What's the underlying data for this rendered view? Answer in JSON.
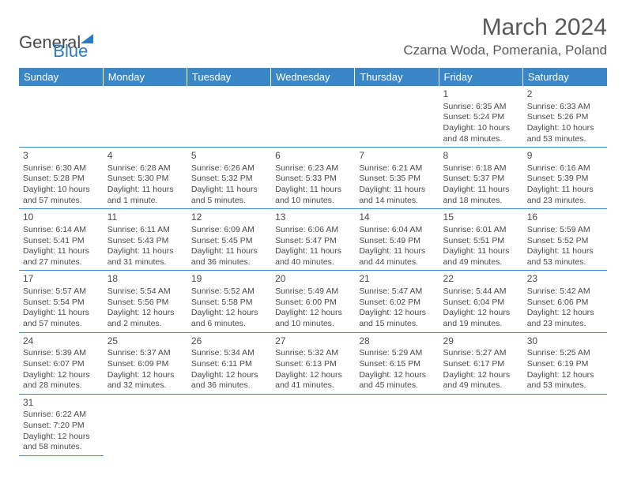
{
  "logo": {
    "text1": "General",
    "text2": "Blue"
  },
  "title": "March 2024",
  "location": "Czarna Woda, Pomerania, Poland",
  "colors": {
    "header_bg": "#3a87c8",
    "header_text": "#ffffff",
    "body_text": "#4a4a4a",
    "title_text": "#595959",
    "divider": "#3a87c8",
    "logo_blue": "#2c7cc4",
    "background": "#ffffff"
  },
  "day_headers": [
    "Sunday",
    "Monday",
    "Tuesday",
    "Wednesday",
    "Thursday",
    "Friday",
    "Saturday"
  ],
  "weeks": [
    [
      null,
      null,
      null,
      null,
      null,
      {
        "n": "1",
        "sr": "Sunrise: 6:35 AM",
        "ss": "Sunset: 5:24 PM",
        "dl": "Daylight: 10 hours and 48 minutes."
      },
      {
        "n": "2",
        "sr": "Sunrise: 6:33 AM",
        "ss": "Sunset: 5:26 PM",
        "dl": "Daylight: 10 hours and 53 minutes."
      }
    ],
    [
      {
        "n": "3",
        "sr": "Sunrise: 6:30 AM",
        "ss": "Sunset: 5:28 PM",
        "dl": "Daylight: 10 hours and 57 minutes."
      },
      {
        "n": "4",
        "sr": "Sunrise: 6:28 AM",
        "ss": "Sunset: 5:30 PM",
        "dl": "Daylight: 11 hours and 1 minute."
      },
      {
        "n": "5",
        "sr": "Sunrise: 6:26 AM",
        "ss": "Sunset: 5:32 PM",
        "dl": "Daylight: 11 hours and 5 minutes."
      },
      {
        "n": "6",
        "sr": "Sunrise: 6:23 AM",
        "ss": "Sunset: 5:33 PM",
        "dl": "Daylight: 11 hours and 10 minutes."
      },
      {
        "n": "7",
        "sr": "Sunrise: 6:21 AM",
        "ss": "Sunset: 5:35 PM",
        "dl": "Daylight: 11 hours and 14 minutes."
      },
      {
        "n": "8",
        "sr": "Sunrise: 6:18 AM",
        "ss": "Sunset: 5:37 PM",
        "dl": "Daylight: 11 hours and 18 minutes."
      },
      {
        "n": "9",
        "sr": "Sunrise: 6:16 AM",
        "ss": "Sunset: 5:39 PM",
        "dl": "Daylight: 11 hours and 23 minutes."
      }
    ],
    [
      {
        "n": "10",
        "sr": "Sunrise: 6:14 AM",
        "ss": "Sunset: 5:41 PM",
        "dl": "Daylight: 11 hours and 27 minutes."
      },
      {
        "n": "11",
        "sr": "Sunrise: 6:11 AM",
        "ss": "Sunset: 5:43 PM",
        "dl": "Daylight: 11 hours and 31 minutes."
      },
      {
        "n": "12",
        "sr": "Sunrise: 6:09 AM",
        "ss": "Sunset: 5:45 PM",
        "dl": "Daylight: 11 hours and 36 minutes."
      },
      {
        "n": "13",
        "sr": "Sunrise: 6:06 AM",
        "ss": "Sunset: 5:47 PM",
        "dl": "Daylight: 11 hours and 40 minutes."
      },
      {
        "n": "14",
        "sr": "Sunrise: 6:04 AM",
        "ss": "Sunset: 5:49 PM",
        "dl": "Daylight: 11 hours and 44 minutes."
      },
      {
        "n": "15",
        "sr": "Sunrise: 6:01 AM",
        "ss": "Sunset: 5:51 PM",
        "dl": "Daylight: 11 hours and 49 minutes."
      },
      {
        "n": "16",
        "sr": "Sunrise: 5:59 AM",
        "ss": "Sunset: 5:52 PM",
        "dl": "Daylight: 11 hours and 53 minutes."
      }
    ],
    [
      {
        "n": "17",
        "sr": "Sunrise: 5:57 AM",
        "ss": "Sunset: 5:54 PM",
        "dl": "Daylight: 11 hours and 57 minutes."
      },
      {
        "n": "18",
        "sr": "Sunrise: 5:54 AM",
        "ss": "Sunset: 5:56 PM",
        "dl": "Daylight: 12 hours and 2 minutes."
      },
      {
        "n": "19",
        "sr": "Sunrise: 5:52 AM",
        "ss": "Sunset: 5:58 PM",
        "dl": "Daylight: 12 hours and 6 minutes."
      },
      {
        "n": "20",
        "sr": "Sunrise: 5:49 AM",
        "ss": "Sunset: 6:00 PM",
        "dl": "Daylight: 12 hours and 10 minutes."
      },
      {
        "n": "21",
        "sr": "Sunrise: 5:47 AM",
        "ss": "Sunset: 6:02 PM",
        "dl": "Daylight: 12 hours and 15 minutes."
      },
      {
        "n": "22",
        "sr": "Sunrise: 5:44 AM",
        "ss": "Sunset: 6:04 PM",
        "dl": "Daylight: 12 hours and 19 minutes."
      },
      {
        "n": "23",
        "sr": "Sunrise: 5:42 AM",
        "ss": "Sunset: 6:06 PM",
        "dl": "Daylight: 12 hours and 23 minutes."
      }
    ],
    [
      {
        "n": "24",
        "sr": "Sunrise: 5:39 AM",
        "ss": "Sunset: 6:07 PM",
        "dl": "Daylight: 12 hours and 28 minutes."
      },
      {
        "n": "25",
        "sr": "Sunrise: 5:37 AM",
        "ss": "Sunset: 6:09 PM",
        "dl": "Daylight: 12 hours and 32 minutes."
      },
      {
        "n": "26",
        "sr": "Sunrise: 5:34 AM",
        "ss": "Sunset: 6:11 PM",
        "dl": "Daylight: 12 hours and 36 minutes."
      },
      {
        "n": "27",
        "sr": "Sunrise: 5:32 AM",
        "ss": "Sunset: 6:13 PM",
        "dl": "Daylight: 12 hours and 41 minutes."
      },
      {
        "n": "28",
        "sr": "Sunrise: 5:29 AM",
        "ss": "Sunset: 6:15 PM",
        "dl": "Daylight: 12 hours and 45 minutes."
      },
      {
        "n": "29",
        "sr": "Sunrise: 5:27 AM",
        "ss": "Sunset: 6:17 PM",
        "dl": "Daylight: 12 hours and 49 minutes."
      },
      {
        "n": "30",
        "sr": "Sunrise: 5:25 AM",
        "ss": "Sunset: 6:19 PM",
        "dl": "Daylight: 12 hours and 53 minutes."
      }
    ],
    [
      {
        "n": "31",
        "sr": "Sunrise: 6:22 AM",
        "ss": "Sunset: 7:20 PM",
        "dl": "Daylight: 12 hours and 58 minutes."
      },
      null,
      null,
      null,
      null,
      null,
      null
    ]
  ]
}
